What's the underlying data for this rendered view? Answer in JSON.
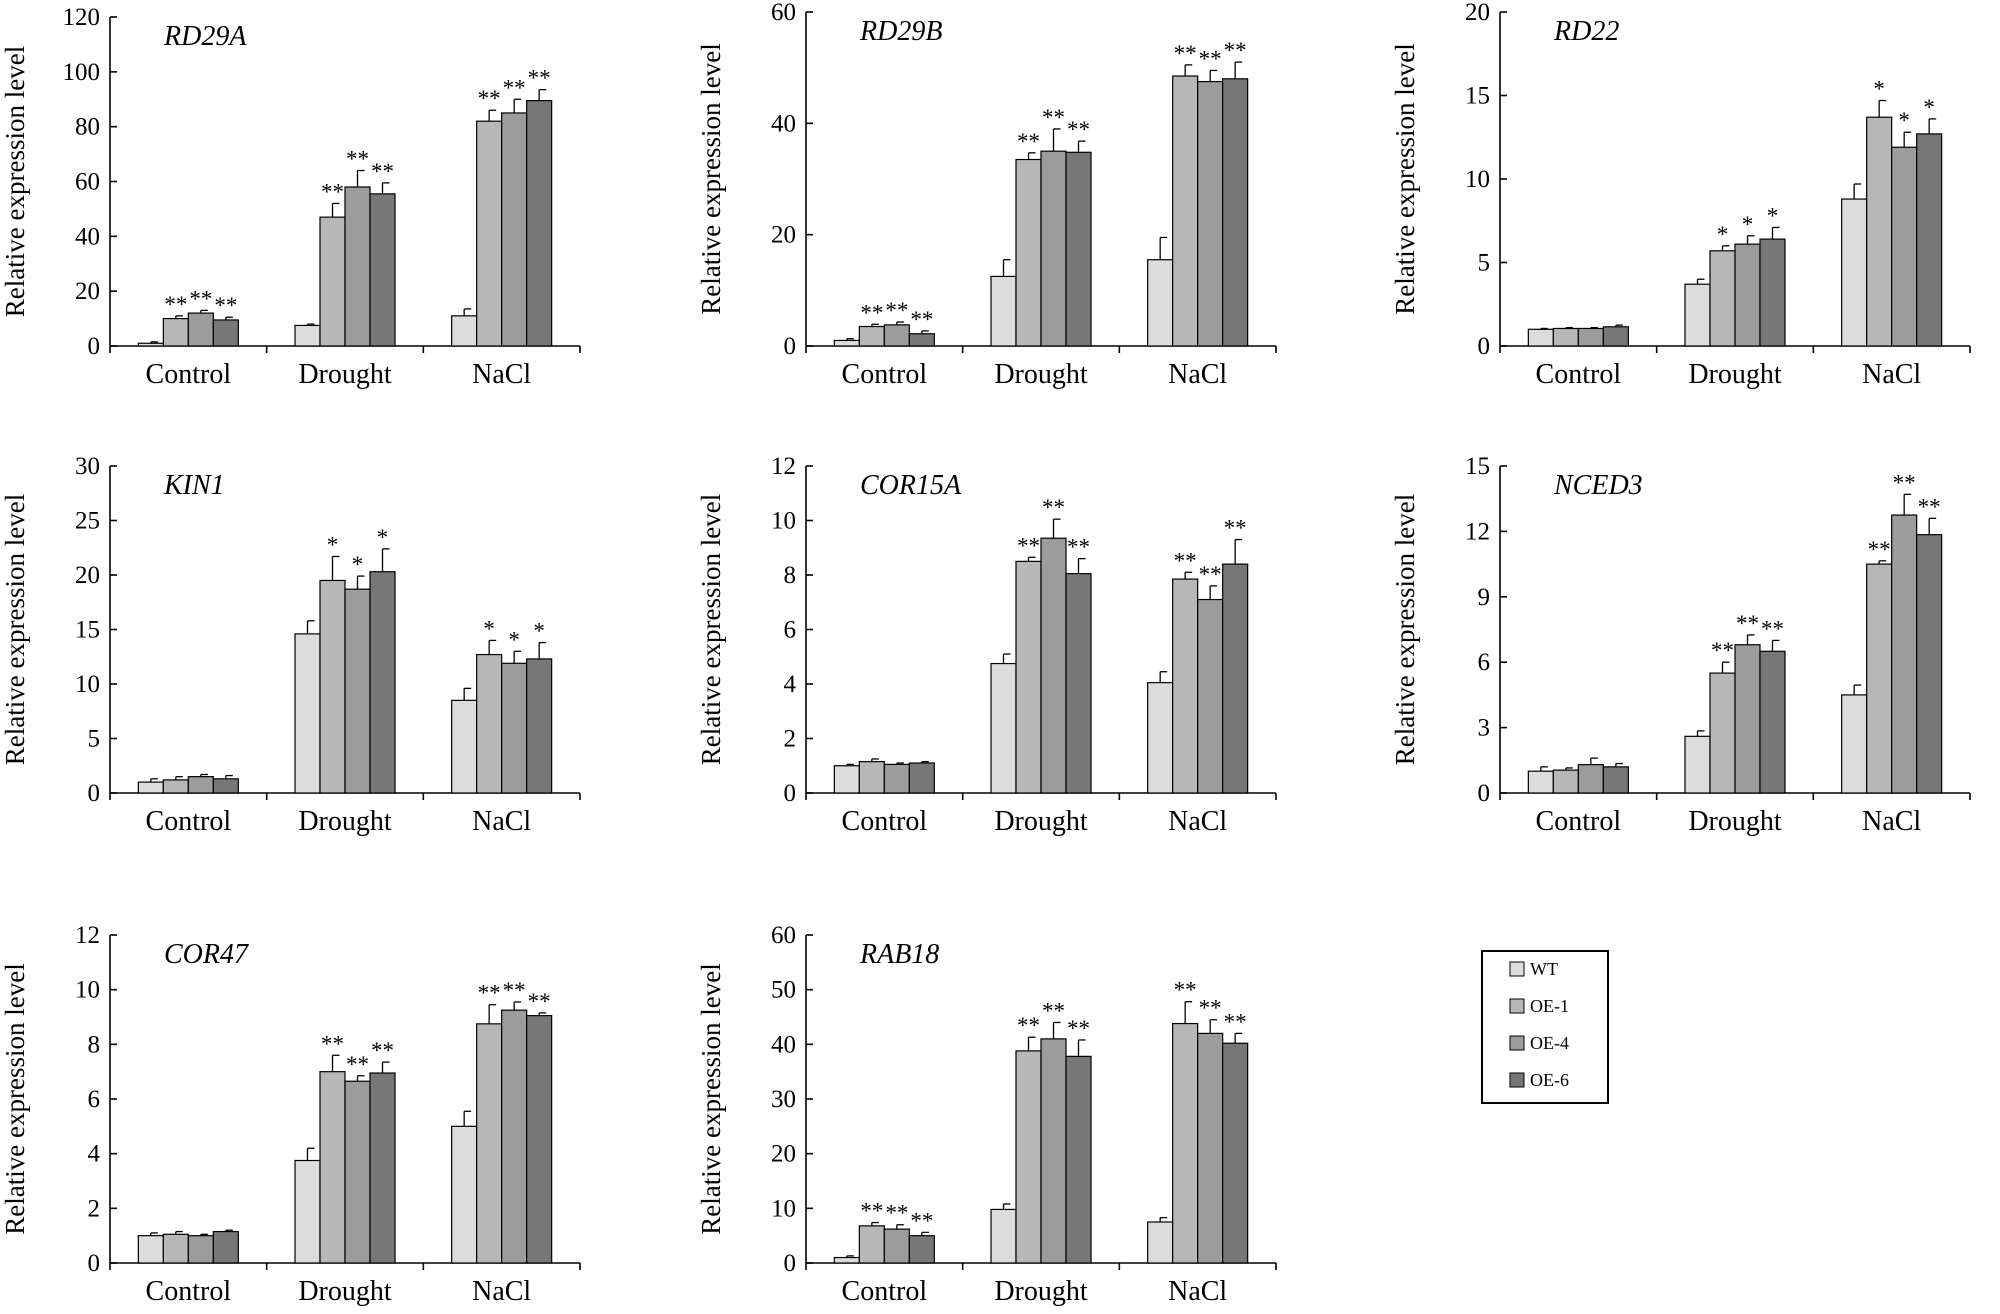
{
  "colors": {
    "WT": "#dcdcdc",
    "OE-1": "#b7b7b7",
    "OE-4": "#9c9c9c",
    "OE-6": "#777777"
  },
  "legend": [
    "WT",
    "OE-1",
    "OE-4",
    "OE-6"
  ],
  "chart_data": [
    {
      "type": "bar",
      "title": "RD29A",
      "ylabel": "Relative expression level",
      "ylim": [
        0,
        120
      ],
      "yticks": [
        "0",
        "20",
        "40",
        "60",
        "80",
        "100",
        "120"
      ],
      "categories": [
        "Control",
        "Drought",
        "NaCl"
      ],
      "series": [
        {
          "name": "WT",
          "values": [
            1,
            7.5,
            11
          ],
          "errors": [
            0.5,
            0.5,
            2.5
          ],
          "sig": [
            "",
            "",
            ""
          ]
        },
        {
          "name": "OE-1",
          "values": [
            10,
            47,
            82
          ],
          "errors": [
            1,
            5,
            4
          ],
          "sig": [
            "**",
            "**",
            "**"
          ]
        },
        {
          "name": "OE-4",
          "values": [
            12,
            58,
            85
          ],
          "errors": [
            1,
            6,
            5
          ],
          "sig": [
            "**",
            "**",
            "**"
          ]
        },
        {
          "name": "OE-6",
          "values": [
            9.5,
            55.5,
            89.5
          ],
          "errors": [
            1,
            4,
            4
          ],
          "sig": [
            "**",
            "**",
            "**"
          ]
        }
      ]
    },
    {
      "type": "bar",
      "title": "RD29B",
      "ylabel": "Relative expression level",
      "ylim": [
        0,
        60
      ],
      "yticks": [
        "0",
        "20",
        "40",
        "60"
      ],
      "categories": [
        "Control",
        "Drought",
        "NaCl"
      ],
      "series": [
        {
          "name": "WT",
          "values": [
            1,
            12.5,
            15.5
          ],
          "errors": [
            0.3,
            3,
            4
          ],
          "sig": [
            "",
            "",
            ""
          ]
        },
        {
          "name": "OE-1",
          "values": [
            3.5,
            33.5,
            48.5
          ],
          "errors": [
            0.4,
            1.2,
            2
          ],
          "sig": [
            "**",
            "**",
            "**"
          ]
        },
        {
          "name": "OE-4",
          "values": [
            3.8,
            35,
            47.5
          ],
          "errors": [
            0.5,
            4,
            2
          ],
          "sig": [
            "**",
            "**",
            "**"
          ]
        },
        {
          "name": "OE-6",
          "values": [
            2.2,
            34.8,
            48
          ],
          "errors": [
            0.5,
            2,
            3
          ],
          "sig": [
            "**",
            "**",
            "**"
          ]
        }
      ]
    },
    {
      "type": "bar",
      "title": "RD22",
      "ylabel": "Relative expression level",
      "ylim": [
        0,
        20
      ],
      "yticks": [
        "0",
        "5",
        "10",
        "15",
        "20"
      ],
      "categories": [
        "Control",
        "Drought",
        "NaCl"
      ],
      "series": [
        {
          "name": "WT",
          "values": [
            1,
            3.7,
            8.8
          ],
          "errors": [
            0.05,
            0.3,
            0.9
          ],
          "sig": [
            "",
            "",
            ""
          ]
        },
        {
          "name": "OE-1",
          "values": [
            1.05,
            5.7,
            13.7
          ],
          "errors": [
            0.05,
            0.3,
            1
          ],
          "sig": [
            "",
            "*",
            "*"
          ]
        },
        {
          "name": "OE-4",
          "values": [
            1.05,
            6.1,
            11.9
          ],
          "errors": [
            0.05,
            0.5,
            0.9
          ],
          "sig": [
            "",
            "*",
            "*"
          ]
        },
        {
          "name": "OE-6",
          "values": [
            1.15,
            6.4,
            12.7
          ],
          "errors": [
            0.1,
            0.7,
            0.9
          ],
          "sig": [
            "",
            "*",
            "*"
          ]
        }
      ]
    },
    {
      "type": "bar",
      "title": "KIN1",
      "ylabel": "Relative expression level",
      "ylim": [
        0,
        30
      ],
      "yticks": [
        "0",
        "5",
        "10",
        "15",
        "20",
        "25",
        "30"
      ],
      "categories": [
        "Control",
        "Drought",
        "NaCl"
      ],
      "series": [
        {
          "name": "WT",
          "values": [
            1,
            14.6,
            8.5
          ],
          "errors": [
            0.3,
            1.2,
            1.1
          ],
          "sig": [
            "",
            "",
            ""
          ]
        },
        {
          "name": "OE-1",
          "values": [
            1.2,
            19.5,
            12.7
          ],
          "errors": [
            0.3,
            2.2,
            1.3
          ],
          "sig": [
            "",
            "*",
            "*"
          ]
        },
        {
          "name": "OE-4",
          "values": [
            1.5,
            18.7,
            11.9
          ],
          "errors": [
            0.2,
            1.2,
            1.1
          ],
          "sig": [
            "",
            "*",
            "*"
          ]
        },
        {
          "name": "OE-6",
          "values": [
            1.3,
            20.3,
            12.3
          ],
          "errors": [
            0.3,
            2.1,
            1.5
          ],
          "sig": [
            "",
            "*",
            "*"
          ]
        }
      ]
    },
    {
      "type": "bar",
      "title": "COR15A",
      "ylabel": "Relative expression level",
      "ylim": [
        0,
        12
      ],
      "yticks": [
        "0",
        "2",
        "4",
        "6",
        "8",
        "10",
        "12"
      ],
      "categories": [
        "Control",
        "Drought",
        "NaCl"
      ],
      "series": [
        {
          "name": "WT",
          "values": [
            1,
            4.75,
            4.05
          ],
          "errors": [
            0.05,
            0.35,
            0.4
          ],
          "sig": [
            "",
            "",
            ""
          ]
        },
        {
          "name": "OE-1",
          "values": [
            1.15,
            8.5,
            7.85
          ],
          "errors": [
            0.1,
            0.15,
            0.25
          ],
          "sig": [
            "",
            "**",
            "**"
          ]
        },
        {
          "name": "OE-4",
          "values": [
            1.05,
            9.35,
            7.1
          ],
          "errors": [
            0.05,
            0.7,
            0.5
          ],
          "sig": [
            "",
            "**",
            "**"
          ]
        },
        {
          "name": "OE-6",
          "values": [
            1.1,
            8.05,
            8.4
          ],
          "errors": [
            0.05,
            0.55,
            0.9
          ],
          "sig": [
            "",
            "**",
            "**"
          ]
        }
      ]
    },
    {
      "type": "bar",
      "title": "NCED3",
      "ylabel": "Relative expression level",
      "ylim": [
        0,
        15
      ],
      "yticks": [
        "0",
        "3",
        "6",
        "9",
        "12",
        "15"
      ],
      "categories": [
        "Control",
        "Drought",
        "NaCl"
      ],
      "series": [
        {
          "name": "WT",
          "values": [
            1,
            2.6,
            4.5
          ],
          "errors": [
            0.2,
            0.25,
            0.45
          ],
          "sig": [
            "",
            "",
            ""
          ]
        },
        {
          "name": "OE-1",
          "values": [
            1.05,
            5.5,
            10.5
          ],
          "errors": [
            0.1,
            0.5,
            0.15
          ],
          "sig": [
            "",
            "**",
            "**"
          ]
        },
        {
          "name": "OE-4",
          "values": [
            1.3,
            6.8,
            12.75
          ],
          "errors": [
            0.3,
            0.45,
            0.95
          ],
          "sig": [
            "",
            "**",
            "**"
          ]
        },
        {
          "name": "OE-6",
          "values": [
            1.2,
            6.5,
            11.85
          ],
          "errors": [
            0.15,
            0.5,
            0.75
          ],
          "sig": [
            "",
            "**",
            "**"
          ]
        }
      ]
    },
    {
      "type": "bar",
      "title": "COR47",
      "ylabel": "Relative expression level",
      "ylim": [
        0,
        12
      ],
      "yticks": [
        "0",
        "2",
        "4",
        "6",
        "8",
        "10",
        "12"
      ],
      "categories": [
        "Control",
        "Drought",
        "NaCl"
      ],
      "series": [
        {
          "name": "WT",
          "values": [
            1,
            3.75,
            5
          ],
          "errors": [
            0.1,
            0.45,
            0.55
          ],
          "sig": [
            "",
            "",
            ""
          ]
        },
        {
          "name": "OE-1",
          "values": [
            1.05,
            7,
            8.75
          ],
          "errors": [
            0.1,
            0.6,
            0.7
          ],
          "sig": [
            "",
            "**",
            "**"
          ]
        },
        {
          "name": "OE-4",
          "values": [
            1,
            6.65,
            9.25
          ],
          "errors": [
            0.05,
            0.2,
            0.3
          ],
          "sig": [
            "",
            "**",
            "**"
          ]
        },
        {
          "name": "OE-6",
          "values": [
            1.15,
            6.95,
            9.05
          ],
          "errors": [
            0.05,
            0.4,
            0.1
          ],
          "sig": [
            "",
            "**",
            "**"
          ]
        }
      ]
    },
    {
      "type": "bar",
      "title": "RAB18",
      "ylabel": "Relative expression level",
      "ylim": [
        0,
        60
      ],
      "yticks": [
        "0",
        "10",
        "20",
        "30",
        "40",
        "50",
        "60"
      ],
      "categories": [
        "Control",
        "Drought",
        "NaCl"
      ],
      "series": [
        {
          "name": "WT",
          "values": [
            1,
            9.8,
            7.5
          ],
          "errors": [
            0.3,
            1,
            0.8
          ],
          "sig": [
            "",
            "",
            ""
          ]
        },
        {
          "name": "OE-1",
          "values": [
            6.8,
            38.8,
            43.8
          ],
          "errors": [
            0.6,
            2.5,
            4
          ],
          "sig": [
            "**",
            "**",
            "**"
          ]
        },
        {
          "name": "OE-4",
          "values": [
            6.2,
            41,
            42
          ],
          "errors": [
            0.8,
            3,
            2.5
          ],
          "sig": [
            "**",
            "**",
            "**"
          ]
        },
        {
          "name": "OE-6",
          "values": [
            5,
            37.8,
            40.2
          ],
          "errors": [
            0.6,
            3,
            1.8
          ],
          "sig": [
            "**",
            "**",
            "**"
          ]
        }
      ]
    }
  ]
}
